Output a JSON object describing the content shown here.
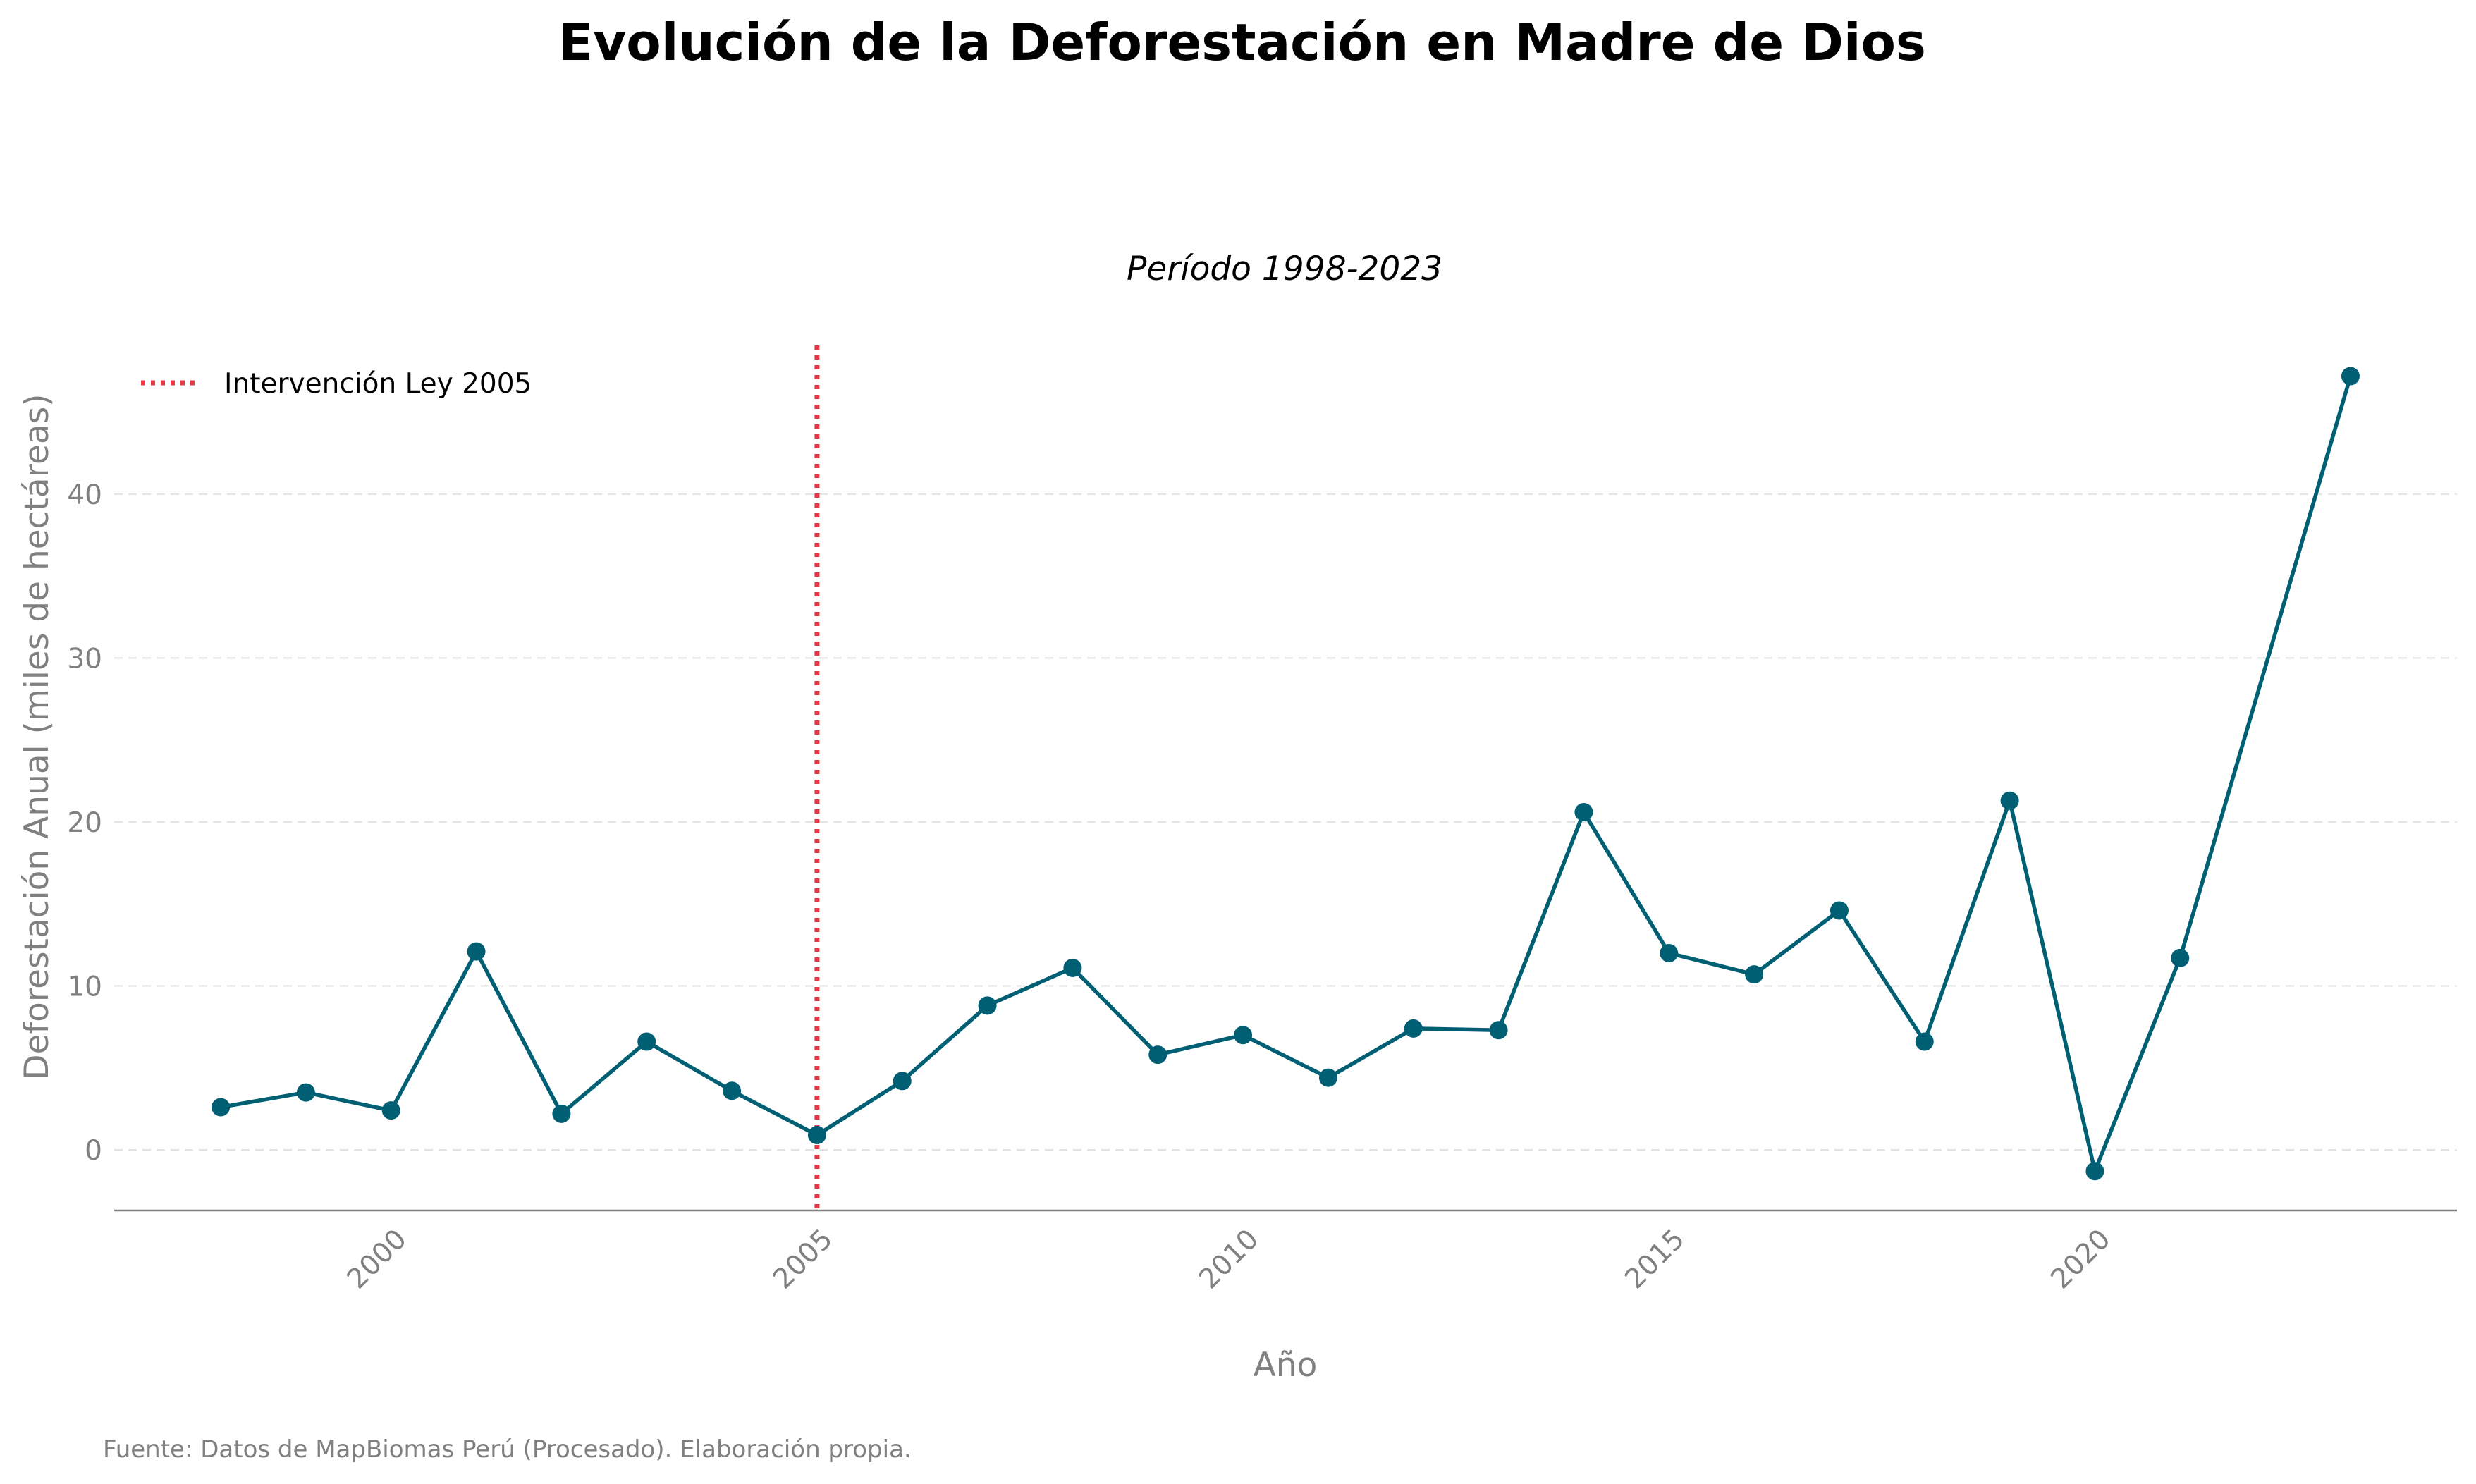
{
  "chart_data": {
    "type": "line",
    "title": "Evolución de la Deforestación en Madre de Dios",
    "subtitle": "Período 1998-2023",
    "xlabel": "Año",
    "ylabel": "Deforestación Anual (miles de hectáreas)",
    "footnote": "Fuente: Datos de MapBiomas Perú (Procesado). Elaboración propia.",
    "xlim": [
      1996.75,
      2024.25
    ],
    "ylim": [
      -3.7,
      49.5
    ],
    "x_ticks": [
      2000,
      2005,
      2010,
      2015,
      2020
    ],
    "x_tick_labels": [
      "2000",
      "2005",
      "2010",
      "2015",
      "2020"
    ],
    "y_ticks": [
      0,
      10,
      20,
      30,
      40
    ],
    "y_tick_labels": [
      "0",
      "10",
      "20",
      "30",
      "40"
    ],
    "grid": "horizontal dashed",
    "legend_position": "top-left",
    "line_color": "#005f73",
    "vline_color": "#e63946",
    "series": [
      {
        "x": [
          1998,
          1999,
          2000,
          2001,
          2002,
          2003,
          2004,
          2005,
          2006,
          2007,
          2008,
          2009,
          2010,
          2011,
          2012,
          2013,
          2014,
          2015,
          2016,
          2017,
          2018,
          2019,
          2020,
          2021,
          2023
        ],
        "values": [
          2.6,
          3.5,
          2.4,
          12.1,
          2.2,
          6.6,
          3.6,
          0.9,
          4.2,
          8.8,
          11.1,
          5.8,
          7.0,
          4.4,
          7.4,
          7.3,
          20.6,
          12.0,
          10.7,
          14.6,
          6.6,
          21.3,
          -1.3,
          11.7,
          47.2
        ]
      }
    ],
    "vlines": [
      {
        "name": "Intervención Ley 2005",
        "x": 2005
      }
    ]
  }
}
